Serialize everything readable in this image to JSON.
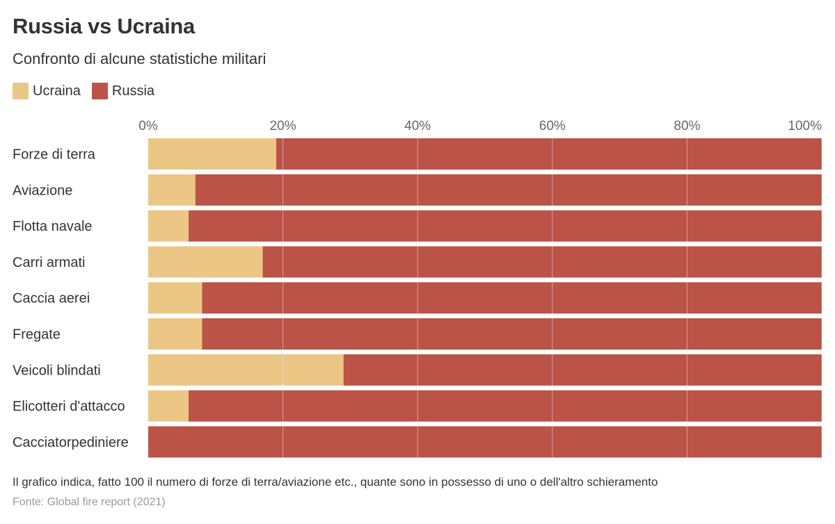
{
  "colors": {
    "ukraine": "#ecc685",
    "russia": "#bb5346",
    "grid": "#e6e6e6"
  },
  "chart_data": {
    "type": "bar",
    "orientation": "horizontal",
    "stacked": "percent",
    "title": "Russia vs Ucraina",
    "subtitle": "Confronto di alcune statistiche militari",
    "categories": [
      "Forze di terra",
      "Aviazione",
      "Flotta navale",
      "Carri armati",
      "Caccia aerei",
      "Fregate",
      "Veicoli blindati",
      "Elicotteri d'attacco",
      "Cacciatorpediniere"
    ],
    "series": [
      {
        "name": "Ucraina",
        "values": [
          19,
          7,
          6,
          17,
          8,
          8,
          29,
          6,
          0
        ]
      },
      {
        "name": "Russia",
        "values": [
          81,
          93,
          94,
          83,
          92,
          92,
          71,
          94,
          100
        ]
      }
    ],
    "xlim": [
      0,
      100
    ],
    "x_ticks": [
      0,
      20,
      40,
      60,
      80,
      100
    ],
    "x_tick_labels": [
      "0%",
      "20%",
      "40%",
      "60%",
      "80%",
      "100%"
    ],
    "legend_position": "top-left",
    "grid": true
  },
  "note": "Il grafico indica, fatto 100 il numero di forze di terra/aviazione etc., quante sono in possesso di uno o dell'altro schieramento",
  "source": "Fonte: Global fire report (2021)"
}
